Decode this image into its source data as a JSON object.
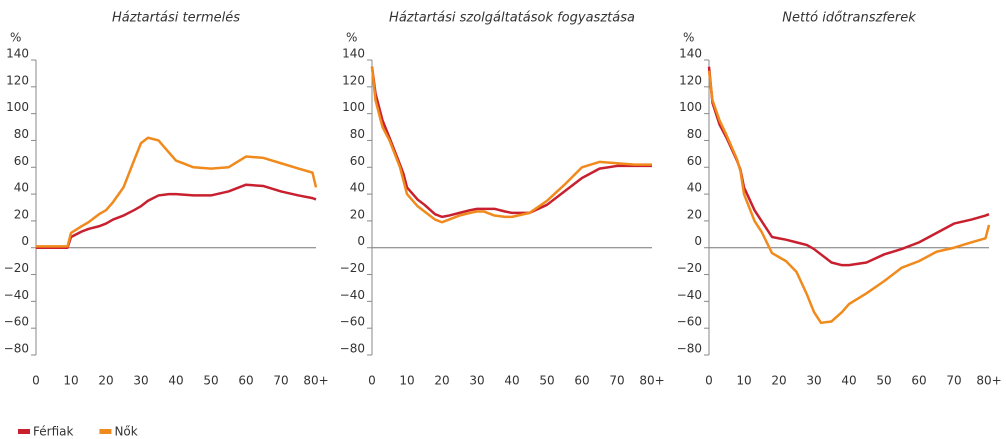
{
  "chart_data": [
    {
      "type": "line",
      "title": "Háztartási termelés",
      "y_unit": "%",
      "x": [
        0,
        1,
        3,
        5,
        8,
        9,
        10,
        13,
        15,
        18,
        20,
        22,
        25,
        28,
        30,
        32,
        35,
        38,
        40,
        45,
        50,
        55,
        60,
        65,
        70,
        75,
        79,
        80
      ],
      "series": [
        {
          "name": "Férfiak",
          "color": "#c8202f",
          "values": [
            0,
            0,
            0,
            0,
            0,
            0,
            8,
            12,
            14,
            16,
            18,
            21,
            24,
            28,
            31,
            35,
            39,
            40,
            40,
            39,
            39,
            42,
            47,
            46,
            42,
            39,
            37,
            36
          ]
        },
        {
          "name": "Nők",
          "color": "#f08a1c",
          "values": [
            1,
            1,
            1,
            1,
            1,
            1,
            11,
            16,
            19,
            25,
            28,
            34,
            45,
            65,
            78,
            82,
            80,
            71,
            65,
            60,
            59,
            60,
            68,
            67,
            63,
            59,
            56,
            45
          ]
        }
      ],
      "xlim": [
        0,
        80
      ],
      "xticks": [
        0,
        10,
        20,
        30,
        40,
        50,
        60,
        70,
        {
          "value": 80,
          "label": "80+"
        }
      ],
      "ylim": [
        -80,
        140
      ],
      "yticks": [
        {
          "value": -80,
          "label": "−80"
        },
        {
          "value": -60,
          "label": "−60"
        },
        {
          "value": -40,
          "label": "−40"
        },
        {
          "value": -20,
          "label": "−20"
        },
        0,
        20,
        40,
        60,
        80,
        100,
        120,
        140
      ]
    },
    {
      "type": "line",
      "title": "Háztartási szolgáltatások fogyasztása",
      "y_unit": "%",
      "x": [
        0,
        1,
        3,
        5,
        8,
        9,
        10,
        13,
        15,
        18,
        20,
        22,
        25,
        28,
        30,
        32,
        35,
        38,
        40,
        45,
        50,
        55,
        60,
        65,
        70,
        75,
        79,
        80
      ],
      "series": [
        {
          "name": "Férfiak",
          "color": "#c8202f",
          "values": [
            135,
            115,
            95,
            82,
            62,
            55,
            45,
            36,
            32,
            25,
            23,
            24,
            26,
            28,
            29,
            29,
            29,
            27,
            26,
            26,
            32,
            42,
            52,
            59,
            61,
            61,
            61,
            61
          ]
        },
        {
          "name": "Nők",
          "color": "#f08a1c",
          "values": [
            135,
            110,
            90,
            80,
            60,
            50,
            40,
            31,
            27,
            21,
            19,
            21,
            24,
            26,
            27,
            27,
            24,
            23,
            23,
            26,
            35,
            47,
            60,
            64,
            63,
            62,
            62,
            62
          ]
        }
      ],
      "xlim": [
        0,
        80
      ],
      "xticks": [
        0,
        10,
        20,
        30,
        40,
        50,
        60,
        70,
        {
          "value": 80,
          "label": "80+"
        }
      ],
      "ylim": [
        -80,
        140
      ],
      "yticks": [
        {
          "value": -80,
          "label": "−80"
        },
        {
          "value": -60,
          "label": "−60"
        },
        {
          "value": -40,
          "label": "−40"
        },
        {
          "value": -20,
          "label": "−20"
        },
        0,
        20,
        40,
        60,
        80,
        100,
        120,
        140
      ]
    },
    {
      "type": "line",
      "title": "Nettó időtranszferek",
      "y_unit": "%",
      "x": [
        0,
        1,
        3,
        5,
        8,
        9,
        10,
        13,
        15,
        18,
        20,
        22,
        25,
        28,
        30,
        32,
        35,
        38,
        40,
        45,
        50,
        55,
        60,
        65,
        70,
        75,
        79,
        80
      ],
      "series": [
        {
          "name": "Férfiak",
          "color": "#c8202f",
          "values": [
            135,
            108,
            92,
            82,
            65,
            58,
            45,
            28,
            20,
            8,
            7,
            6,
            4,
            2,
            -1,
            -5,
            -11,
            -13,
            -13,
            -11,
            -5,
            -1,
            4,
            11,
            18,
            21,
            24,
            25
          ]
        },
        {
          "name": "Nők",
          "color": "#f08a1c",
          "values": [
            132,
            110,
            95,
            84,
            66,
            57,
            40,
            20,
            12,
            -4,
            -7,
            -10,
            -18,
            -35,
            -48,
            -56,
            -55,
            -48,
            -42,
            -34,
            -25,
            -15,
            -10,
            -3,
            0,
            4,
            7,
            17
          ]
        }
      ],
      "xlim": [
        0,
        80
      ],
      "xticks": [
        0,
        10,
        20,
        30,
        40,
        50,
        60,
        70,
        {
          "value": 80,
          "label": "80+"
        }
      ],
      "ylim": [
        -80,
        140
      ],
      "yticks": [
        {
          "value": -80,
          "label": "−80"
        },
        {
          "value": -60,
          "label": "−60"
        },
        {
          "value": -40,
          "label": "−40"
        },
        {
          "value": -20,
          "label": "−20"
        },
        0,
        20,
        40,
        60,
        80,
        100,
        120,
        140
      ]
    }
  ]
}
